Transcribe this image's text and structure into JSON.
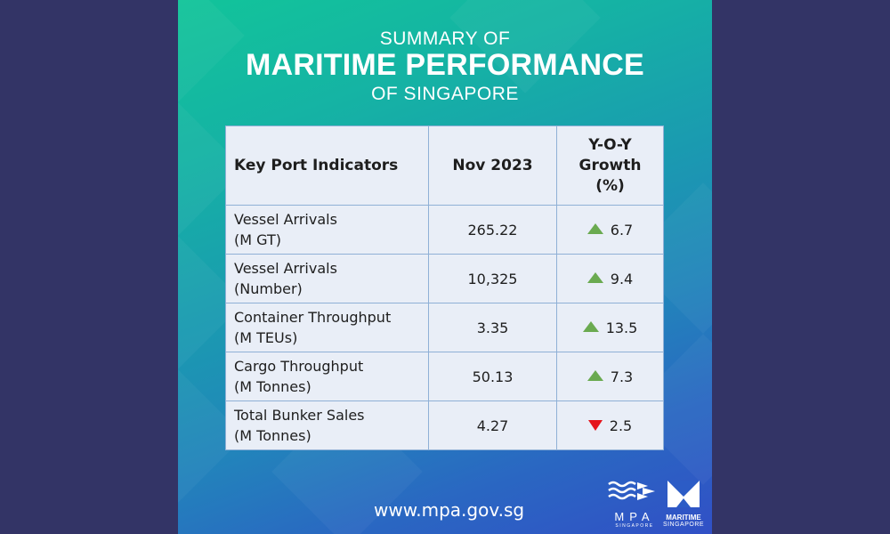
{
  "header": {
    "line1": "SUMMARY OF",
    "line2": "MARITIME PERFORMANCE",
    "line3": "OF SINGAPORE"
  },
  "table": {
    "headers": {
      "indicator": "Key Port Indicators",
      "period": "Nov 2023",
      "yoy_line1": "Y-O-Y",
      "yoy_line2": "Growth",
      "yoy_line3": "(%)"
    },
    "rows": [
      {
        "name": "Vessel Arrivals",
        "unit": "(M GT)",
        "value": "265.22",
        "trend": "up",
        "growth": "6.7"
      },
      {
        "name": "Vessel Arrivals",
        "unit": "(Number)",
        "value": "10,325",
        "trend": "up",
        "growth": "9.4"
      },
      {
        "name": "Container Throughput",
        "unit": "(M TEUs)",
        "value": "3.35",
        "trend": "up",
        "growth": "13.5"
      },
      {
        "name": "Cargo Throughput",
        "unit": "(M Tonnes)",
        "value": "50.13",
        "trend": "up",
        "growth": "7.3"
      },
      {
        "name": "Total Bunker Sales",
        "unit": "(M Tonnes)",
        "value": "4.27",
        "trend": "down",
        "growth": "2.5"
      }
    ]
  },
  "footer": {
    "url": "www.mpa.gov.sg",
    "mpa_logo_text": "MPA",
    "mpa_logo_sub": "SINGAPORE",
    "ms_logo_text": "MARITIME",
    "ms_logo_sub": "SINGAPORE"
  },
  "colors": {
    "up": "#6aaa50",
    "down": "#e5141b",
    "outer_background": "#333466"
  }
}
